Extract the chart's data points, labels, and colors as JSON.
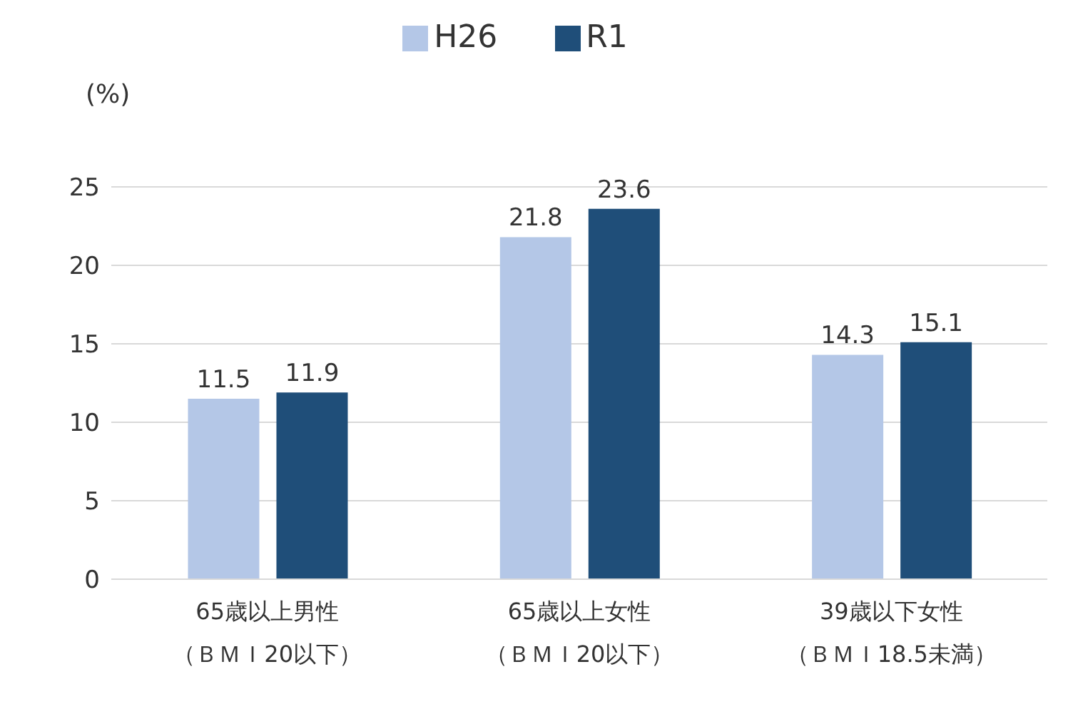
{
  "chart_data": {
    "type": "bar",
    "ylabel": "(%)",
    "categories": [
      "65歳以上男性（ＢＭＩ20以下）",
      "65歳以上女性（ＢＭＩ20以下）",
      "39歳以下女性（ＢＭＩ18.5未満）"
    ],
    "series": [
      {
        "name": "H26",
        "color": "#b4c7e7",
        "values": [
          11.5,
          21.8,
          14.3
        ]
      },
      {
        "name": "R1",
        "color": "#1f4e79",
        "values": [
          11.9,
          23.6,
          15.1
        ]
      }
    ],
    "ylim": [
      0,
      25
    ],
    "yticks": [
      0,
      5,
      10,
      15,
      20,
      25
    ],
    "grid": "y",
    "legend": "top",
    "data_labels": true
  }
}
